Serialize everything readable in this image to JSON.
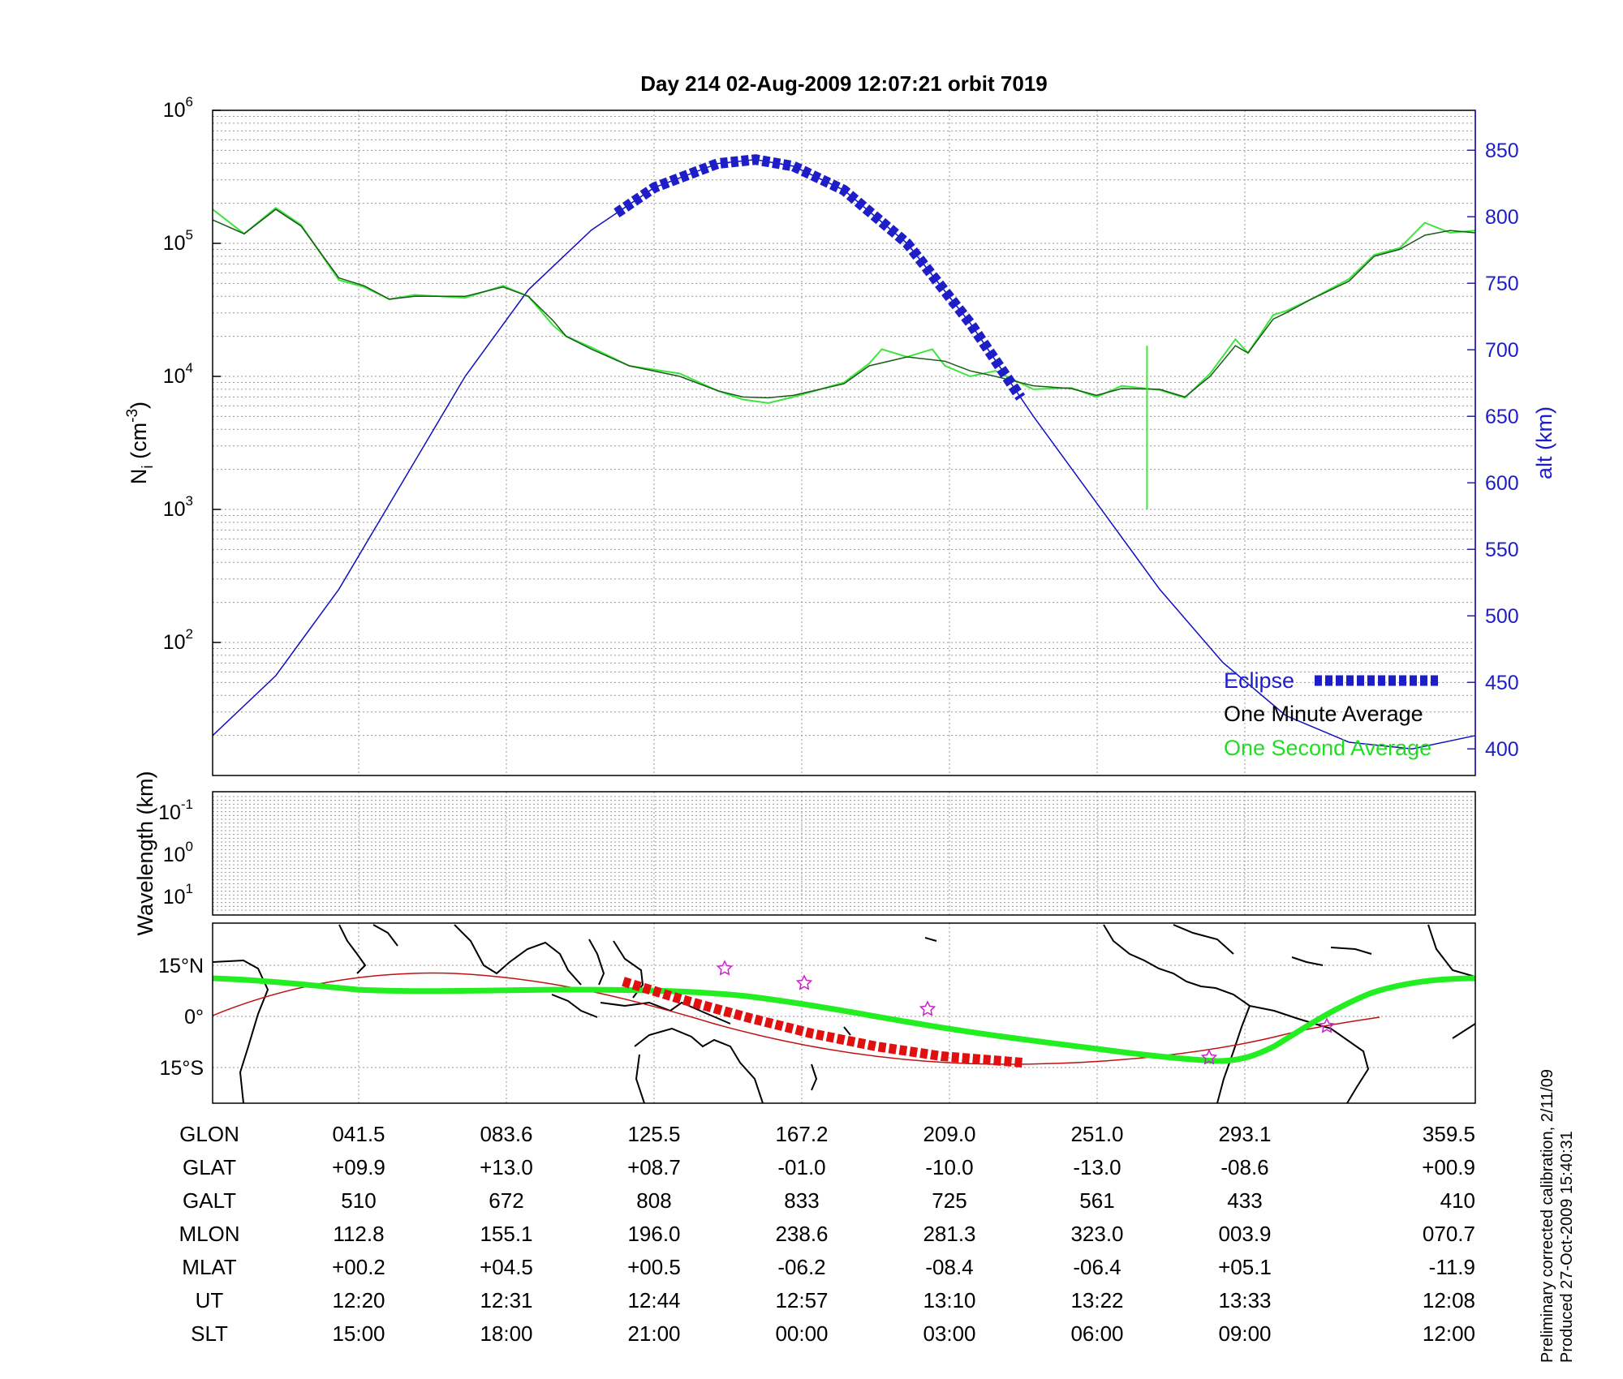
{
  "chart_data": [
    {
      "type": "line",
      "title": "Day 214  02-Aug-2009 12:07:21   orbit 7019",
      "y_label": "N",
      "y_label_sub": "i",
      "y_label_unit": "(cm",
      "y_label_exp": "-3",
      "y_label_close": ")",
      "y_scale": "log",
      "y_range": [
        10,
        1000000
      ],
      "y_tick_exponents": [
        "2",
        "3",
        "4",
        "5",
        "6"
      ],
      "y_tick_base": "10",
      "y2_label": "alt (km)",
      "y2_range": [
        380,
        880
      ],
      "y2_ticks": [
        "400",
        "450",
        "500",
        "550",
        "600",
        "650",
        "700",
        "750",
        "800",
        "850"
      ],
      "x_range": [
        0,
        1
      ],
      "grid": true,
      "legend_position": "bottom-right",
      "legend": [
        {
          "label": "Eclipse",
          "color": "#1e1ec8"
        },
        {
          "label": "One Minute Average",
          "color": "#000000"
        },
        {
          "label": "One Second Average",
          "color": "#22dd22"
        }
      ],
      "series": [
        {
          "name": "One Minute Average",
          "color": "#1a5a1a",
          "x": [
            0,
            0.025,
            0.05,
            0.07,
            0.1,
            0.12,
            0.14,
            0.16,
            0.2,
            0.23,
            0.25,
            0.27,
            0.28,
            0.3,
            0.33,
            0.37,
            0.4,
            0.42,
            0.44,
            0.46,
            0.5,
            0.52,
            0.55,
            0.58,
            0.6,
            0.62,
            0.65,
            0.68,
            0.7,
            0.72,
            0.75,
            0.77,
            0.79,
            0.81,
            0.82,
            0.84,
            0.85,
            0.87,
            0.9,
            0.92,
            0.94,
            0.96,
            0.98,
            1.0
          ],
          "y": [
            150000,
            118000,
            180000,
            135000,
            55000,
            48000,
            38000,
            40000,
            40000,
            47000,
            40000,
            26000,
            20000,
            16000,
            12000,
            10000,
            7800,
            7000,
            6900,
            7200,
            8800,
            12000,
            14000,
            13000,
            11000,
            10000,
            8500,
            8100,
            7200,
            8100,
            8000,
            7000,
            10000,
            17000,
            15000,
            27000,
            30000,
            38000,
            52000,
            80000,
            90000,
            115000,
            125000,
            120000
          ]
        },
        {
          "name": "One Second Average",
          "color": "#3ce63c",
          "x": [
            0,
            0.025,
            0.05,
            0.07,
            0.1,
            0.12,
            0.14,
            0.16,
            0.2,
            0.23,
            0.25,
            0.27,
            0.28,
            0.3,
            0.33,
            0.37,
            0.4,
            0.42,
            0.44,
            0.46,
            0.5,
            0.52,
            0.53,
            0.55,
            0.57,
            0.58,
            0.6,
            0.62,
            0.65,
            0.68,
            0.7,
            0.72,
            0.75,
            0.77,
            0.79,
            0.81,
            0.82,
            0.84,
            0.85,
            0.87,
            0.9,
            0.92,
            0.94,
            0.96,
            0.98,
            1.0
          ],
          "y": [
            180000,
            118000,
            185000,
            138000,
            53000,
            47000,
            38000,
            41000,
            39000,
            48000,
            40000,
            24000,
            20000,
            16500,
            12000,
            10500,
            7800,
            6700,
            6300,
            7000,
            9000,
            12500,
            16000,
            14000,
            16000,
            12000,
            10000,
            11000,
            8000,
            8200,
            7000,
            8500,
            7900,
            6900,
            10500,
            19000,
            15000,
            29000,
            31000,
            38000,
            54000,
            82000,
            92000,
            143000,
            120000,
            125000
          ]
        },
        {
          "name": "alt",
          "color": "#1010c0",
          "x": [
            0,
            0.05,
            0.1,
            0.15,
            0.2,
            0.25,
            0.3,
            0.35,
            0.4,
            0.43,
            0.46,
            0.5,
            0.55,
            0.6,
            0.65,
            0.7,
            0.75,
            0.8,
            0.85,
            0.9,
            0.95,
            1.0
          ],
          "y": [
            410,
            455,
            520,
            600,
            680,
            745,
            790,
            822,
            840,
            843,
            838,
            820,
            780,
            720,
            650,
            585,
            520,
            465,
            425,
            405,
            400,
            410
          ]
        }
      ],
      "eclipse_x_range": [
        0.32,
        0.64
      ]
    },
    {
      "type": "heatmap",
      "y_label": "Wavelength (km)",
      "y_tick_base": "10",
      "y_tick_exponents": [
        "-1",
        "0",
        "1"
      ],
      "values": []
    },
    {
      "type": "map",
      "y_ticks": [
        "15°N",
        "0°",
        "15°S"
      ],
      "note": "satellite ground track over world coastlines"
    }
  ],
  "table": {
    "row_labels": [
      "GLON",
      "GLAT",
      "GALT",
      "MLON",
      "MLAT",
      "UT",
      "SLT"
    ],
    "columns": [
      [
        "041.5",
        "+09.9",
        "510",
        "112.8",
        "+00.2",
        "12:20",
        "15:00"
      ],
      [
        "083.6",
        "+13.0",
        "672",
        "155.1",
        "+04.5",
        "12:31",
        "18:00"
      ],
      [
        "125.5",
        "+08.7",
        "808",
        "196.0",
        "+00.5",
        "12:44",
        "21:00"
      ],
      [
        "167.2",
        "-01.0",
        "833",
        "238.6",
        "-06.2",
        "12:57",
        "00:00"
      ],
      [
        "209.0",
        "-10.0",
        "725",
        "281.3",
        "-08.4",
        "13:10",
        "03:00"
      ],
      [
        "251.0",
        "-13.0",
        "561",
        "323.0",
        "-06.4",
        "13:22",
        "06:00"
      ],
      [
        "293.1",
        "-08.6",
        "433",
        "003.9",
        "+05.1",
        "13:33",
        "09:00"
      ],
      [
        "359.5",
        "+00.9",
        "410",
        "070.7",
        "-11.9",
        "12:08",
        "12:00"
      ]
    ]
  },
  "footnote": {
    "line1": "Preliminary corrected calibration, 2/11/09",
    "line2": "Produced 27-Oct-2009 15:40:31"
  }
}
